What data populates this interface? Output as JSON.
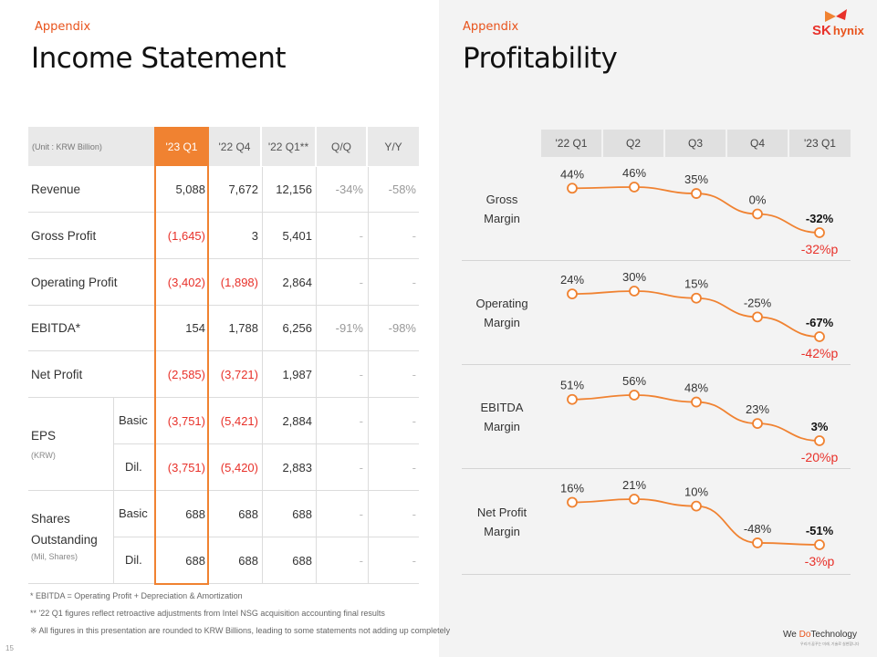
{
  "left": {
    "kicker": "Appendix",
    "title": "Income Statement",
    "unit": "(Unit : KRW Billion)",
    "columns": [
      "'23 Q1",
      "'22 Q4",
      "'22 Q1**",
      "Q/Q",
      "Y/Y"
    ],
    "rows": {
      "revenue": {
        "label": "Revenue",
        "v": [
          "5,088",
          "7,672",
          "12,156",
          "-34%",
          "-58%"
        ]
      },
      "gross": {
        "label": "Gross Profit",
        "v": [
          "(1,645)",
          "3",
          "5,401",
          "-",
          "-"
        ]
      },
      "operating": {
        "label": "Operating Profit",
        "v": [
          "(3,402)",
          "(1,898)",
          "2,864",
          "-",
          "-"
        ]
      },
      "ebitda": {
        "label": "EBITDA*",
        "v": [
          "154",
          "1,788",
          "6,256",
          "-91%",
          "-98%"
        ]
      },
      "net": {
        "label": "Net Profit",
        "v": [
          "(2,585)",
          "(3,721)",
          "1,987",
          "-",
          "-"
        ]
      }
    },
    "eps": {
      "label": "EPS",
      "sub": "(KRW)",
      "basic": {
        "label": "Basic",
        "v": [
          "(3,751)",
          "(5,421)",
          "2,884",
          "-",
          "-"
        ]
      },
      "dil": {
        "label": "Dil.",
        "v": [
          "(3,751)",
          "(5,420)",
          "2,883",
          "-",
          "-"
        ]
      }
    },
    "shares": {
      "label1": "Shares",
      "label2": "Outstanding",
      "sub": "(Mil, Shares)",
      "basic": {
        "label": "Basic",
        "v": [
          "688",
          "688",
          "688",
          "-",
          "-"
        ]
      },
      "dil": {
        "label": "Dil.",
        "v": [
          "688",
          "688",
          "688",
          "-",
          "-"
        ]
      }
    },
    "footnotes": [
      "* EBITDA = Operating Profit + Depreciation & Amortization",
      "** '22 Q1 figures reflect retroactive adjustments from Intel NSG acquisition accounting final results",
      "※ All figures in this presentation are rounded to KRW Billions, leading to some statements not adding up completely"
    ],
    "page_number": "15"
  },
  "right": {
    "kicker": "Appendix",
    "title": "Profitability",
    "quarters": [
      "'22 Q1",
      "Q2",
      "Q3",
      "Q4",
      "'23 Q1"
    ],
    "logo": {
      "sk": "SK",
      "hynix": "hynix"
    },
    "tagline": {
      "we": "We ",
      "do": "Do",
      "tech": "Technology",
      "sub": "우리가 꿈꾸는 미래, 기술로 실현합니다"
    },
    "colors": {
      "accent": "#f08231",
      "negative": "#e8312a"
    }
  },
  "chart_data": {
    "type": "line",
    "x": [
      "'22 Q1",
      "Q2",
      "Q3",
      "Q4",
      "'23 Q1"
    ],
    "series": [
      {
        "name": "Gross Margin",
        "label_lines": [
          "Gross",
          "Margin"
        ],
        "values": [
          44,
          46,
          35,
          0,
          -32
        ],
        "labels": [
          "44%",
          "46%",
          "35%",
          "0%",
          "-32%"
        ],
        "yoy": "-32%p"
      },
      {
        "name": "Operating Margin",
        "label_lines": [
          "Operating",
          "Margin"
        ],
        "values": [
          24,
          30,
          15,
          -25,
          -67
        ],
        "labels": [
          "24%",
          "30%",
          "15%",
          "-25%",
          "-67%"
        ],
        "yoy": "-42%p"
      },
      {
        "name": "EBITDA Margin",
        "label_lines": [
          "EBITDA",
          "Margin"
        ],
        "values": [
          51,
          56,
          48,
          23,
          3
        ],
        "labels": [
          "51%",
          "56%",
          "48%",
          "23%",
          "3%"
        ],
        "yoy": "-20%p"
      },
      {
        "name": "Net Profit Margin",
        "label_lines": [
          "Net Profit",
          "Margin"
        ],
        "values": [
          16,
          21,
          10,
          -48,
          -51
        ],
        "labels": [
          "16%",
          "21%",
          "10%",
          "-48%",
          "-51%"
        ],
        "yoy": "-3%p"
      }
    ]
  }
}
